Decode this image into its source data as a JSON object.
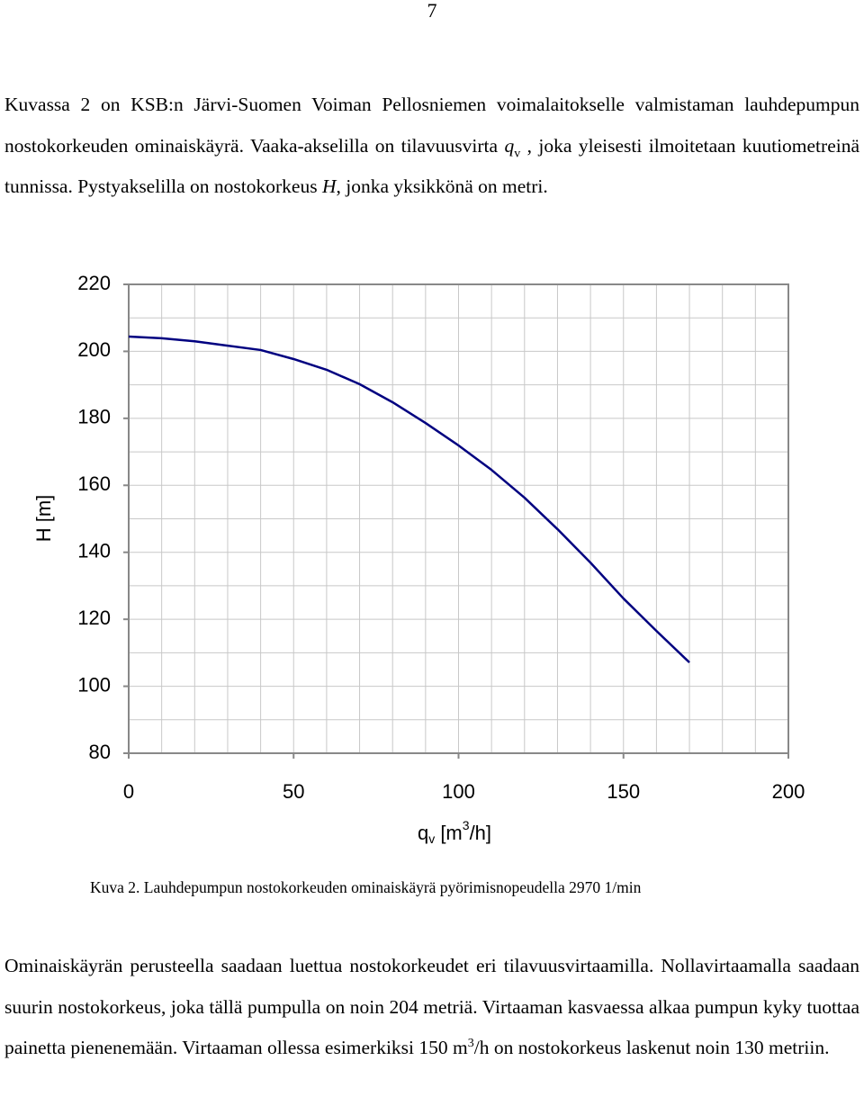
{
  "page_number": "7",
  "paragraph1": [
    "Kuvassa 2 on KSB:n Järvi-Suomen Voiman Pellosniemen voimalaitokselle valmistaman lauhdepumpun nostokorkeuden ominaiskäyrä. Vaaka-akselilla on tilavuusvirta ",
    "q",
    "v",
    " , joka yleisesti ilmoitetaan kuutiometreinä tunnissa. Pystyakselilla on nostokorkeus ",
    "H",
    ", jonka yksikkönä on metri."
  ],
  "chart_data": {
    "type": "line",
    "ylabel": "H [m]",
    "xlabel": [
      "q",
      "v",
      " [m",
      "3",
      "/h]"
    ],
    "x": [
      0,
      10,
      20,
      30,
      40,
      50,
      60,
      70,
      80,
      90,
      100,
      110,
      120,
      130,
      140,
      150,
      160,
      170
    ],
    "series": [
      {
        "color": "#000080",
        "values": [
          204.4,
          203.9,
          203,
          201.7,
          200.4,
          197.7,
          194.5,
          190.2,
          184.8,
          178.6,
          171.9,
          164.6,
          156.3,
          146.9,
          136.9,
          126.2,
          116.5,
          107.1
        ]
      }
    ],
    "xlim": [
      0,
      200
    ],
    "ylim": [
      80,
      220
    ],
    "xticks": [
      0,
      50,
      100,
      150,
      200
    ],
    "yticks": [
      80,
      100,
      120,
      140,
      160,
      180,
      200,
      220
    ],
    "grid": true
  },
  "caption": "Kuva 2. Lauhdepumpun nostokorkeuden ominaiskäyrä pyörimisnopeudella 2970 1/min",
  "paragraph2": [
    "Ominaiskäyrän perusteella saadaan luettua nostokorkeudet eri tilavuusvirtaamilla. Nollavirtaamalla saadaan suurin nostokorkeus, joka tällä pumpulla on noin 204 metriä. Virtaaman kasvaessa alkaa pumpun kyky tuottaa painetta pienenemään. Virtaaman ollessa esimerkiksi 150 m",
    "3",
    "/h on nostokorkeus laskenut noin 130 metriin."
  ]
}
